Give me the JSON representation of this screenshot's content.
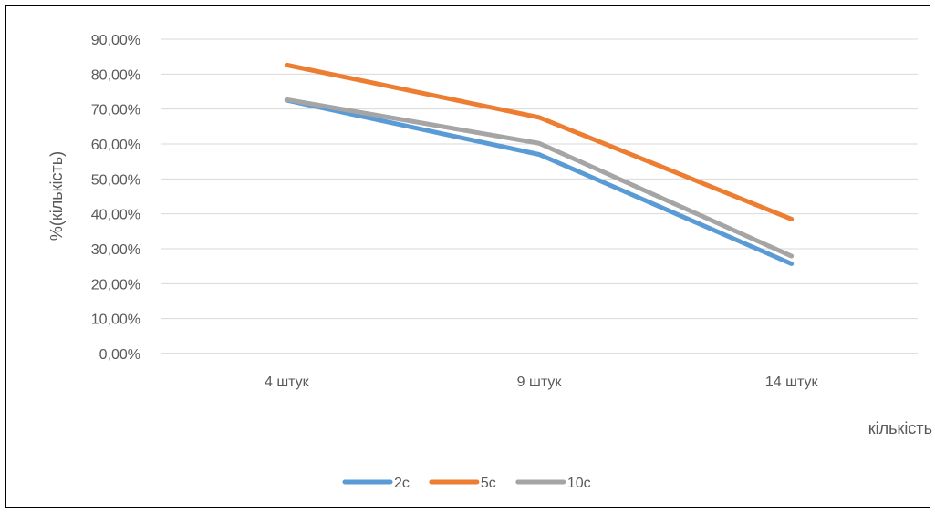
{
  "chart_data": {
    "type": "line",
    "categories": [
      "4 штук",
      "9 штук",
      "14 штук"
    ],
    "series": [
      {
        "name": "2с",
        "color": "#5B9BD5",
        "values": [
          0.725,
          0.57,
          0.257
        ]
      },
      {
        "name": "5с",
        "color": "#ED7D31",
        "values": [
          0.826,
          0.676,
          0.385
        ]
      },
      {
        "name": "10с",
        "color": "#A5A5A5",
        "values": [
          0.727,
          0.602,
          0.279
        ]
      }
    ],
    "y_ticks": [
      "0,00%",
      "10,00%",
      "20,00%",
      "30,00%",
      "40,00%",
      "50,00%",
      "60,00%",
      "70,00%",
      "80,00%",
      "90,00%"
    ],
    "ylim": [
      0,
      0.9
    ],
    "xlabel": "кількість",
    "ylabel": "%(кількість)",
    "grid": true,
    "legend": "bottom"
  }
}
